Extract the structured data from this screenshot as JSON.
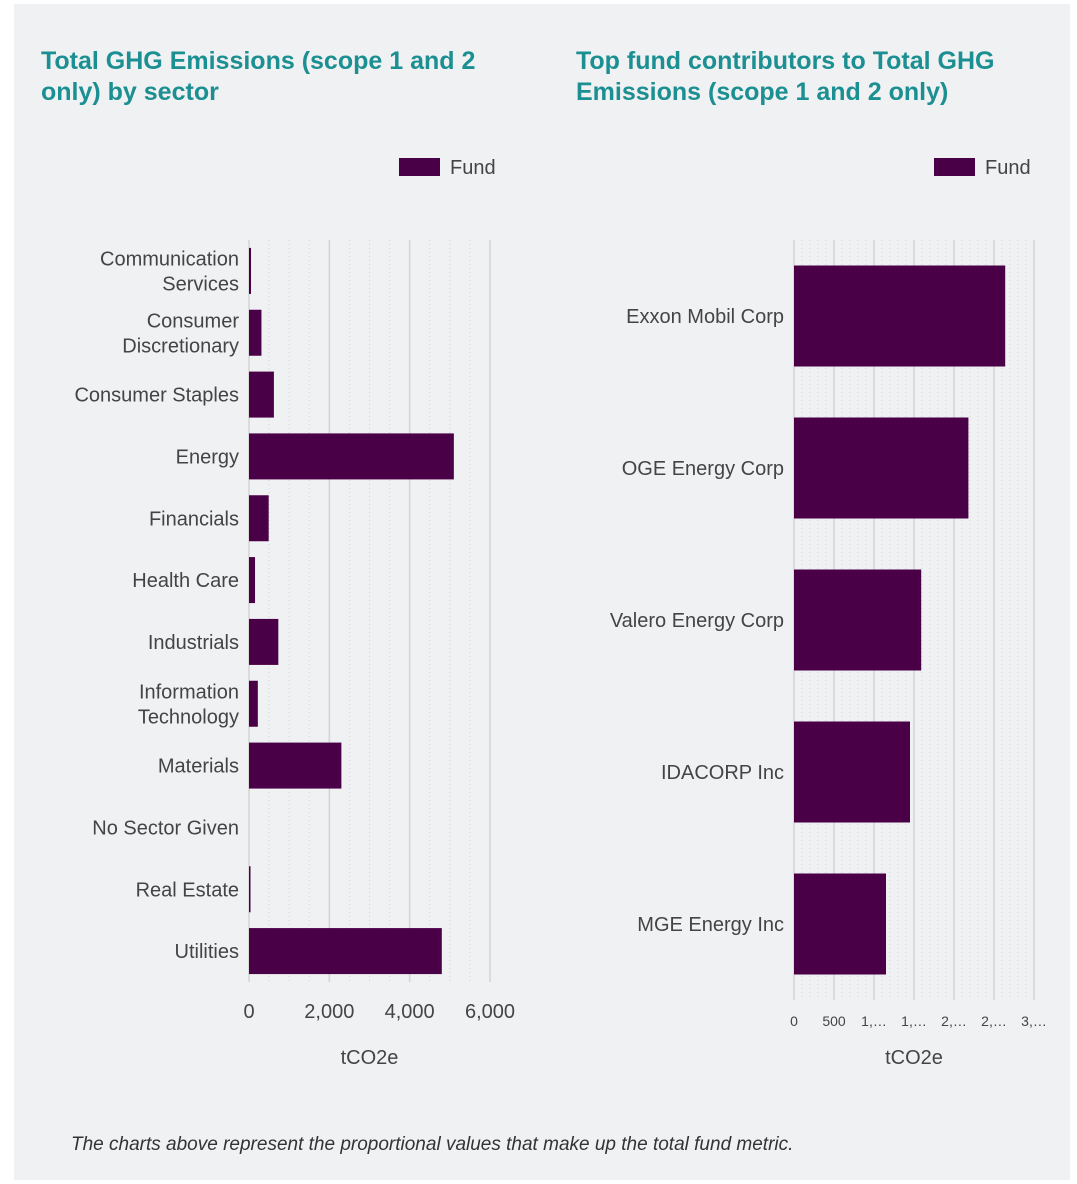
{
  "colors": {
    "bar": "#4a0047",
    "title": "#1b8f91",
    "text": "#444444",
    "grid": "#d4d4d4",
    "background": "#f0f1f3"
  },
  "footnote": "The charts above represent the proportional values that make up the total fund metric.",
  "chart_data": [
    {
      "type": "bar",
      "orientation": "horizontal",
      "title": "Total GHG Emissions (scope 1 and 2 only) by sector",
      "xlabel": "tCO2e",
      "legend": "top-right",
      "grid": true,
      "xlim": [
        0,
        6000
      ],
      "xticks": [
        {
          "value": 0,
          "label": "0"
        },
        {
          "value": 2000,
          "label": "2,000"
        },
        {
          "value": 4000,
          "label": "4,000"
        },
        {
          "value": 6000,
          "label": "6,000"
        }
      ],
      "categories": [
        "Communication Services",
        "Consumer Discretionary",
        "Consumer Staples",
        "Energy",
        "Financials",
        "Health Care",
        "Industrials",
        "Information Technology",
        "Materials",
        "No Sector Given",
        "Real Estate",
        "Utilities"
      ],
      "series": [
        {
          "name": "Fund",
          "values": [
            50,
            310,
            620,
            5100,
            490,
            150,
            730,
            220,
            2300,
            0,
            20,
            4800
          ]
        }
      ]
    },
    {
      "type": "bar",
      "orientation": "horizontal",
      "title": "Top fund contributors to Total GHG Emissions (scope 1 and 2 only)",
      "xlabel": "tCO2e",
      "legend": "top-right",
      "grid": true,
      "xlim": [
        0,
        3000
      ],
      "xticks": [
        {
          "value": 0,
          "label": "0"
        },
        {
          "value": 500,
          "label": "500"
        },
        {
          "value": 1000,
          "label": "1,…"
        },
        {
          "value": 1500,
          "label": "1,…"
        },
        {
          "value": 2000,
          "label": "2,…"
        },
        {
          "value": 2500,
          "label": "2,…"
        },
        {
          "value": 3000,
          "label": "3,…"
        }
      ],
      "categories": [
        "Exxon Mobil Corp",
        "OGE Energy Corp",
        "Valero Energy Corp",
        "IDACORP Inc",
        "MGE Energy Inc"
      ],
      "series": [
        {
          "name": "Fund",
          "values": [
            2640,
            2180,
            1590,
            1450,
            1150
          ]
        }
      ]
    }
  ]
}
